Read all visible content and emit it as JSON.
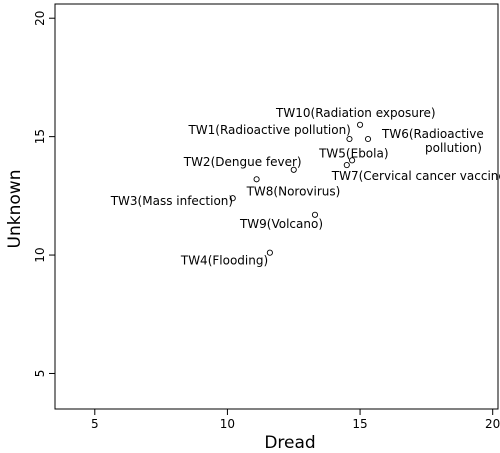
{
  "chart_data": {
    "type": "scatter",
    "xlabel": "Dread",
    "ylabel": "Unknown",
    "xlim": [
      3.5,
      20.2
    ],
    "ylim": [
      3.5,
      20.6
    ],
    "xticks": [
      5,
      10,
      15,
      20
    ],
    "yticks": [
      5,
      10,
      15,
      20
    ],
    "grid": false,
    "points": [
      {
        "x": 15.0,
        "y": 15.5,
        "label": "TW10(Radiation exposure)"
      },
      {
        "x": 14.6,
        "y": 14.9,
        "label": "TW1(Radioactive pollution)"
      },
      {
        "x": 15.3,
        "y": 14.9,
        "label": "TW6(Radioactive pollution)"
      },
      {
        "x": 14.7,
        "y": 14.0,
        "label": "TW5(Ebola)"
      },
      {
        "x": 14.5,
        "y": 13.8,
        "label": "TW7(Cervical cancer vaccine)"
      },
      {
        "x": 12.5,
        "y": 13.6,
        "label": "TW2(Dengue fever)"
      },
      {
        "x": 11.1,
        "y": 13.2,
        "label": "TW8(Norovirus)"
      },
      {
        "x": 10.2,
        "y": 12.4,
        "label": "TW3(Mass infection)"
      },
      {
        "x": 13.3,
        "y": 11.7,
        "label": "TW9(Volcano)"
      },
      {
        "x": 11.6,
        "y": 10.1,
        "label": "TW4(Flooding)"
      }
    ]
  }
}
